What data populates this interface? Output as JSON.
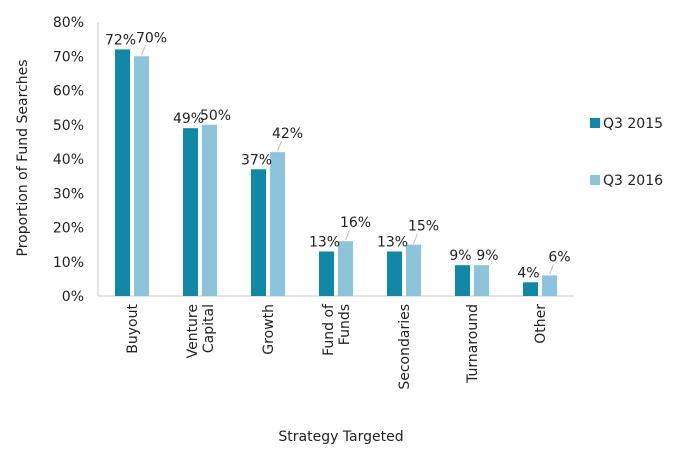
{
  "chart_data": {
    "type": "bar",
    "title": "",
    "xlabel": "Strategy Targeted",
    "ylabel": "Proportion of Fund Searches",
    "ylim": [
      0,
      80
    ],
    "y_ticks": [
      "0%",
      "10%",
      "20%",
      "30%",
      "40%",
      "50%",
      "60%",
      "70%",
      "80%"
    ],
    "categories": [
      [
        "Buyout"
      ],
      [
        "Venture",
        "Capital"
      ],
      [
        "Growth"
      ],
      [
        "Fund of",
        "Funds"
      ],
      [
        "Secondaries"
      ],
      [
        "Turnaround"
      ],
      [
        "Other"
      ]
    ],
    "series": [
      {
        "name": "Q3 2015",
        "color": "#0f89a5",
        "values": [
          72,
          49,
          37,
          13,
          13,
          9,
          4
        ],
        "labels": [
          "72%",
          "49%",
          "37%",
          "13%",
          "13%",
          "9%",
          "4%"
        ]
      },
      {
        "name": "Q3 2016",
        "color": "#8cc4dc",
        "values": [
          70,
          50,
          42,
          16,
          15,
          9,
          6
        ],
        "labels": [
          "70%",
          "50%",
          "42%",
          "16%",
          "15%",
          "9%",
          "6%"
        ]
      }
    ],
    "legend_position": "right",
    "grid": false
  }
}
